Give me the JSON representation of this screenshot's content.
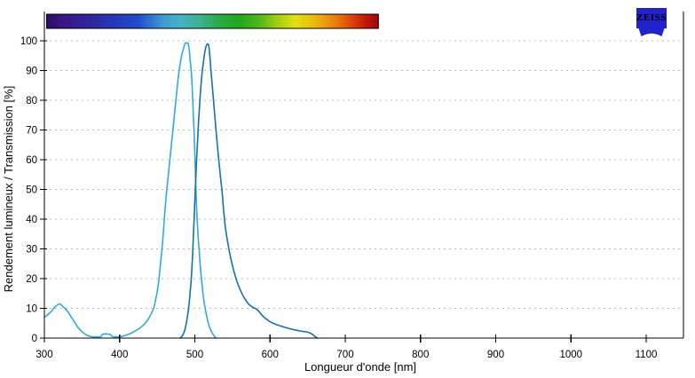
{
  "brand": {
    "logo_text": "ZEISS",
    "logo_color": "#2222cc",
    "logo_text_color": "#ffffff"
  },
  "colors": {
    "background": "#ffffff",
    "axis": "#000000",
    "grid": "#b9b9b9",
    "excitation": "#2fa9e1",
    "emission": "#1572a8",
    "colorbar_border": "#000000"
  },
  "chart_data": {
    "type": "line",
    "title": "",
    "xlabel": "Longueur d'onde [nm]",
    "ylabel": "Rendement lumineux / Transmission [%]",
    "xlim": [
      300,
      1150
    ],
    "ylim": [
      0,
      100
    ],
    "x_ticks": [
      300,
      400,
      500,
      600,
      700,
      800,
      900,
      1000,
      1100
    ],
    "y_ticks": [
      0,
      10,
      20,
      30,
      40,
      50,
      60,
      70,
      80,
      90,
      100
    ],
    "grid": "horizontal-dashed",
    "legend": "none",
    "series": [
      {
        "name": "excitation-spectrum",
        "color": "#2fa9e1",
        "points": [
          [
            300,
            7
          ],
          [
            303,
            7.5
          ],
          [
            306,
            8.2
          ],
          [
            310,
            9.2
          ],
          [
            314,
            10.5
          ],
          [
            318,
            11.3
          ],
          [
            321,
            11.5
          ],
          [
            324,
            10.8
          ],
          [
            328,
            9.8
          ],
          [
            332,
            8.6
          ],
          [
            336,
            7
          ],
          [
            340,
            5.4
          ],
          [
            344,
            3.8
          ],
          [
            348,
            2.6
          ],
          [
            352,
            1.7
          ],
          [
            356,
            1
          ],
          [
            360,
            0.6
          ],
          [
            365,
            0.4
          ],
          [
            370,
            0.4
          ],
          [
            375,
            0.4
          ],
          [
            377,
            1.3
          ],
          [
            381,
            1.4
          ],
          [
            385,
            1.3
          ],
          [
            388,
            1.2
          ],
          [
            390,
            0.5
          ],
          [
            394,
            0.4
          ],
          [
            398,
            0.4
          ],
          [
            402,
            0.5
          ],
          [
            406,
            0.8
          ],
          [
            410,
            1.1
          ],
          [
            414,
            1.5
          ],
          [
            418,
            2
          ],
          [
            422,
            2.6
          ],
          [
            426,
            3.2
          ],
          [
            430,
            4
          ],
          [
            434,
            5
          ],
          [
            438,
            6.3
          ],
          [
            441,
            7.7
          ],
          [
            444,
            9.2
          ],
          [
            446,
            10.5
          ],
          [
            448,
            13
          ],
          [
            450,
            15.5
          ],
          [
            452,
            19
          ],
          [
            454,
            24
          ],
          [
            456,
            29
          ],
          [
            458,
            35
          ],
          [
            460,
            42
          ],
          [
            462,
            48
          ],
          [
            464,
            53
          ],
          [
            466,
            58
          ],
          [
            468,
            63
          ],
          [
            470,
            68
          ],
          [
            472,
            73
          ],
          [
            474,
            78
          ],
          [
            476,
            83
          ],
          [
            478,
            88
          ],
          [
            480,
            91.5
          ],
          [
            482,
            94.5
          ],
          [
            484,
            96.5
          ],
          [
            486,
            98.3
          ],
          [
            487,
            99.2
          ],
          [
            489,
            99.4
          ],
          [
            491,
            99.2
          ],
          [
            492,
            98
          ],
          [
            493,
            96
          ],
          [
            494,
            93
          ],
          [
            495,
            90.5
          ],
          [
            496,
            87
          ],
          [
            497,
            81
          ],
          [
            498,
            75
          ],
          [
            499,
            69
          ],
          [
            500,
            62
          ],
          [
            501,
            54
          ],
          [
            502,
            46
          ],
          [
            503,
            40
          ],
          [
            504,
            36
          ],
          [
            505,
            32
          ],
          [
            506,
            28.5
          ],
          [
            507,
            25
          ],
          [
            508,
            22
          ],
          [
            509,
            19.5
          ],
          [
            510,
            17
          ],
          [
            511,
            14.5
          ],
          [
            512,
            12.5
          ],
          [
            513,
            11
          ],
          [
            514,
            9.8
          ],
          [
            515,
            8.3
          ],
          [
            516,
            7
          ],
          [
            517,
            6
          ],
          [
            518,
            5
          ],
          [
            519,
            4.2
          ],
          [
            520,
            3.5
          ],
          [
            521,
            2.8
          ],
          [
            522,
            2.2
          ],
          [
            523,
            1.8
          ],
          [
            524,
            1.4
          ],
          [
            525,
            1
          ],
          [
            526,
            0.6
          ],
          [
            527,
            0.3
          ],
          [
            528,
            0.1
          ],
          [
            529,
            0
          ]
        ]
      },
      {
        "name": "emission-spectrum",
        "color": "#1572a8",
        "points": [
          [
            480,
            0
          ],
          [
            483,
            0.6
          ],
          [
            485,
            1.5
          ],
          [
            487,
            3
          ],
          [
            489,
            5.5
          ],
          [
            490,
            7
          ],
          [
            491,
            8.7
          ],
          [
            492,
            10.7
          ],
          [
            493,
            13.2
          ],
          [
            494,
            16
          ],
          [
            495,
            19
          ],
          [
            496,
            23
          ],
          [
            497,
            28
          ],
          [
            498,
            34
          ],
          [
            499,
            40
          ],
          [
            500,
            46
          ],
          [
            501,
            52
          ],
          [
            502,
            58
          ],
          [
            503,
            63
          ],
          [
            504,
            68
          ],
          [
            505,
            73
          ],
          [
            506,
            77
          ],
          [
            507,
            81
          ],
          [
            508,
            84.5
          ],
          [
            509,
            87.5
          ],
          [
            510,
            90
          ],
          [
            511,
            92
          ],
          [
            512,
            94
          ],
          [
            513,
            95.8
          ],
          [
            514,
            97.2
          ],
          [
            515,
            98.2
          ],
          [
            516,
            98.8
          ],
          [
            517,
            99
          ],
          [
            518,
            98.8
          ],
          [
            519,
            97.5
          ],
          [
            520,
            95
          ],
          [
            521,
            91.5
          ],
          [
            522,
            88.5
          ],
          [
            523,
            85.5
          ],
          [
            524,
            82.5
          ],
          [
            525,
            79.5
          ],
          [
            526,
            76.5
          ],
          [
            527,
            73.5
          ],
          [
            528,
            70.5
          ],
          [
            529,
            67.5
          ],
          [
            530,
            65
          ],
          [
            531,
            62
          ],
          [
            532,
            59.5
          ],
          [
            533,
            57
          ],
          [
            534,
            54.5
          ],
          [
            535,
            52
          ],
          [
            536,
            50
          ],
          [
            537,
            47
          ],
          [
            538,
            43.5
          ],
          [
            539,
            41
          ],
          [
            540,
            38.5
          ],
          [
            541,
            36.5
          ],
          [
            542,
            34.8
          ],
          [
            544,
            31.8
          ],
          [
            546,
            29
          ],
          [
            548,
            26.6
          ],
          [
            550,
            24.4
          ],
          [
            552,
            22.4
          ],
          [
            554,
            20.6
          ],
          [
            556,
            19
          ],
          [
            558,
            17.6
          ],
          [
            560,
            16.4
          ],
          [
            563,
            14.8
          ],
          [
            566,
            13.4
          ],
          [
            569,
            12.2
          ],
          [
            572,
            11.3
          ],
          [
            575,
            10.7
          ],
          [
            578,
            10.2
          ],
          [
            581,
            9.9
          ],
          [
            584,
            9.3
          ],
          [
            587,
            8.4
          ],
          [
            590,
            7.5
          ],
          [
            593,
            6.8
          ],
          [
            596,
            6.2
          ],
          [
            600,
            5.5
          ],
          [
            604,
            5
          ],
          [
            608,
            4.6
          ],
          [
            612,
            4.2
          ],
          [
            616,
            3.9
          ],
          [
            620,
            3.6
          ],
          [
            624,
            3.3
          ],
          [
            628,
            3
          ],
          [
            632,
            2.8
          ],
          [
            636,
            2.6
          ],
          [
            640,
            2.4
          ],
          [
            644,
            2.2
          ],
          [
            648,
            2.1
          ],
          [
            651,
            1.9
          ],
          [
            654,
            1.6
          ],
          [
            657,
            1.1
          ],
          [
            659,
            0.7
          ],
          [
            661,
            0.3
          ],
          [
            663,
            0
          ]
        ]
      }
    ],
    "colorbar": {
      "x_range_nm": [
        303,
        744
      ],
      "stops": [
        [
          0,
          "#2c0b66"
        ],
        [
          5,
          "#3a1586"
        ],
        [
          12,
          "#33239c"
        ],
        [
          20,
          "#2437b8"
        ],
        [
          28,
          "#2050cc"
        ],
        [
          35,
          "#3e9ad4"
        ],
        [
          40,
          "#45b2c6"
        ],
        [
          46,
          "#3cb292"
        ],
        [
          52,
          "#2aab46"
        ],
        [
          58,
          "#1ea81e"
        ],
        [
          64,
          "#4fb718"
        ],
        [
          70,
          "#a8cf10"
        ],
        [
          75,
          "#e3e00e"
        ],
        [
          81,
          "#eab90c"
        ],
        [
          86,
          "#e9880c"
        ],
        [
          91,
          "#e1500a"
        ],
        [
          96,
          "#c71708"
        ],
        [
          100,
          "#9d0909"
        ]
      ]
    }
  }
}
